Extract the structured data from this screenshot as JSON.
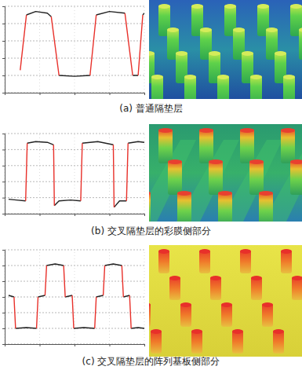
{
  "chart_data": [
    {
      "type": "line",
      "title": "(a) 普通隔垫层",
      "x": [
        20,
        28,
        28,
        40,
        55,
        60,
        60,
        70,
        70,
        90,
        110,
        110,
        118,
        118,
        135,
        155,
        155,
        165,
        165,
        172,
        172,
        178,
        178,
        180
      ],
      "series": [
        {
          "color": "#222222",
          "values": [
            null,
            null,
            4.5,
            4.7,
            4.6,
            4.4,
            null,
            null,
            1.0,
            0.95,
            1.0,
            null,
            null,
            4.5,
            4.7,
            4.6,
            null,
            null,
            1.0,
            1.0,
            null,
            null,
            4.5,
            4.6
          ]
        },
        {
          "color": "#e8302a",
          "values": [
            1.3,
            4.5,
            null,
            null,
            null,
            null,
            4.4,
            1.0,
            null,
            null,
            null,
            1.0,
            4.5,
            null,
            null,
            null,
            4.6,
            1.0,
            null,
            null,
            1.0,
            4.5,
            null,
            null
          ]
        }
      ],
      "xlim": [
        0,
        180
      ],
      "xticks": [
        0,
        45,
        90,
        135,
        180
      ],
      "ylim": [
        0,
        5
      ],
      "yticks": [
        0,
        1,
        2,
        3,
        4,
        5
      ],
      "grid": true,
      "tick_labels": false
    },
    {
      "type": "line",
      "title": "(b) 交叉隔垫层的彩膜侧部分",
      "x": [
        5,
        15,
        27,
        27,
        29,
        29,
        40,
        55,
        63,
        63,
        64,
        64,
        70,
        85,
        98,
        98,
        100,
        100,
        120,
        140,
        140,
        141,
        141,
        148,
        157,
        157,
        159,
        159,
        172,
        180
      ],
      "series": [
        {
          "color": "#222222",
          "values": [
            0.9,
            0.85,
            0.8,
            null,
            null,
            4.4,
            4.5,
            4.45,
            4.3,
            null,
            null,
            0.5,
            0.8,
            0.85,
            0.8,
            null,
            null,
            4.4,
            4.5,
            4.3,
            null,
            null,
            0.4,
            0.8,
            0.8,
            null,
            null,
            4.4,
            4.5,
            4.45
          ]
        },
        {
          "color": "#e8302a",
          "values": [
            null,
            null,
            null,
            0.8,
            4.4,
            null,
            null,
            null,
            null,
            4.3,
            0.5,
            null,
            null,
            null,
            null,
            0.8,
            4.4,
            null,
            null,
            null,
            4.3,
            0.4,
            null,
            null,
            null,
            0.8,
            4.4,
            null,
            null,
            null
          ]
        }
      ],
      "xlim": [
        0,
        180
      ],
      "xticks": [
        0,
        45,
        90,
        135,
        180
      ],
      "ylim": [
        0,
        5
      ],
      "yticks": [
        0,
        1,
        2,
        3,
        4,
        5
      ],
      "grid": true,
      "tick_labels": false
    },
    {
      "type": "line",
      "title": "(c) 交叉隔垫层的阵列基板侧部分",
      "x": [
        5,
        12,
        12,
        14,
        14,
        28,
        41,
        41,
        43,
        43,
        52,
        52,
        54,
        54,
        65,
        76,
        76,
        78,
        78,
        87,
        87,
        89,
        89,
        102,
        116,
        116,
        118,
        118,
        127,
        127,
        129,
        129,
        140,
        151,
        151,
        153,
        153,
        161,
        161,
        163,
        163,
        172,
        180
      ],
      "series": [
        {
          "color": "#222222",
          "values": [
            3.1,
            3.0,
            null,
            null,
            1.0,
            1.05,
            1.0,
            null,
            null,
            3.0,
            3.1,
            null,
            null,
            5.0,
            5.1,
            5.0,
            null,
            null,
            3.0,
            3.1,
            null,
            null,
            1.0,
            1.05,
            1.0,
            null,
            null,
            3.0,
            3.1,
            null,
            null,
            5.0,
            5.1,
            5.0,
            null,
            null,
            3.0,
            3.1,
            null,
            null,
            1.0,
            1.05,
            1.0
          ]
        },
        {
          "color": "#e8302a",
          "values": [
            null,
            null,
            3.0,
            1.0,
            null,
            null,
            null,
            1.0,
            3.0,
            null,
            null,
            3.1,
            5.0,
            null,
            null,
            null,
            5.0,
            3.0,
            null,
            null,
            3.1,
            1.0,
            null,
            null,
            null,
            1.0,
            3.0,
            null,
            null,
            3.1,
            5.0,
            null,
            null,
            null,
            5.0,
            3.0,
            null,
            null,
            3.1,
            1.0,
            null,
            null,
            null
          ]
        }
      ],
      "xlim": [
        0,
        180
      ],
      "xticks": [
        0,
        45,
        90,
        135,
        180
      ],
      "ylim": [
        0,
        6
      ],
      "yticks": [
        0,
        1,
        2,
        3,
        4,
        5,
        6
      ],
      "grid": true,
      "tick_labels": false
    }
  ]
}
